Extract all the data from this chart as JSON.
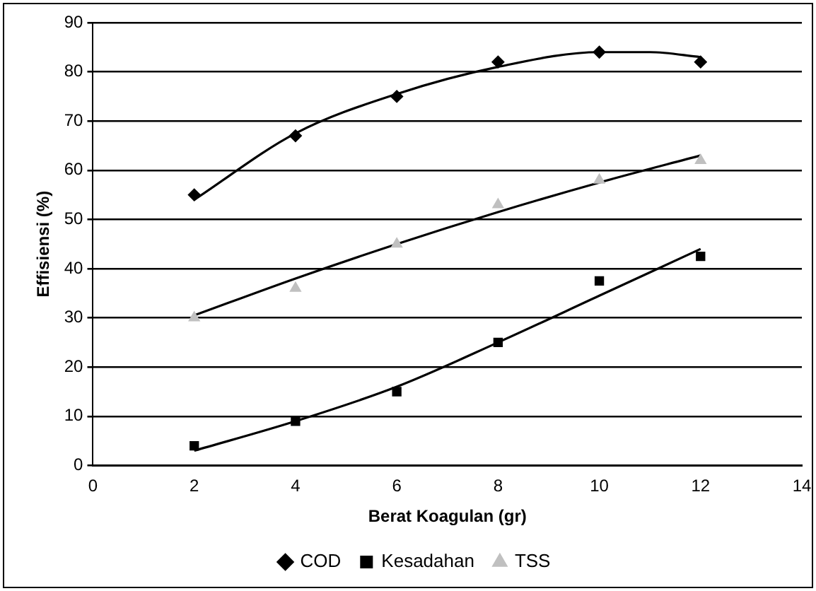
{
  "chart_data": {
    "type": "scatter",
    "xlabel": "Berat Koagulan (gr)",
    "ylabel": "Effisiensi (%)",
    "x": [
      2,
      4,
      6,
      8,
      10,
      12
    ],
    "series": [
      {
        "name": "COD",
        "color": "#000000",
        "marker": "diamond",
        "values": [
          55,
          67,
          75,
          82,
          84,
          82
        ]
      },
      {
        "name": "Kesadahan",
        "color": "#000000",
        "marker": "square",
        "values": [
          4,
          9,
          15,
          25,
          37.5,
          42.5
        ]
      },
      {
        "name": "TSS",
        "color": "#c0c0c0",
        "marker": "triangle",
        "values": [
          30,
          36,
          45,
          53,
          58,
          62
        ]
      },
      {
        "type": "line",
        "color": "#000000",
        "x": [
          2,
          4,
          6,
          8,
          10,
          11,
          12
        ],
        "values": [
          54,
          67.5,
          75.5,
          81,
          84,
          84,
          83
        ]
      },
      {
        "type": "line",
        "color": "#000000",
        "x": [
          2,
          4,
          6,
          8,
          10,
          12
        ],
        "values": [
          3,
          9,
          16,
          25,
          34.5,
          44
        ]
      },
      {
        "type": "line",
        "color": "#000000",
        "x": [
          2,
          4,
          6,
          8,
          10,
          12
        ],
        "values": [
          30.5,
          38,
          45,
          51.5,
          57.5,
          63
        ]
      }
    ],
    "xlim": [
      0,
      14
    ],
    "xticks": [
      0,
      2,
      4,
      6,
      8,
      10,
      12,
      14
    ],
    "ylim": [
      0,
      90
    ],
    "yticks": [
      0,
      10,
      20,
      30,
      40,
      50,
      60,
      70,
      80,
      90
    ],
    "grid": "y",
    "legend": "bottom",
    "marker": "none",
    "line_style": "solid"
  }
}
